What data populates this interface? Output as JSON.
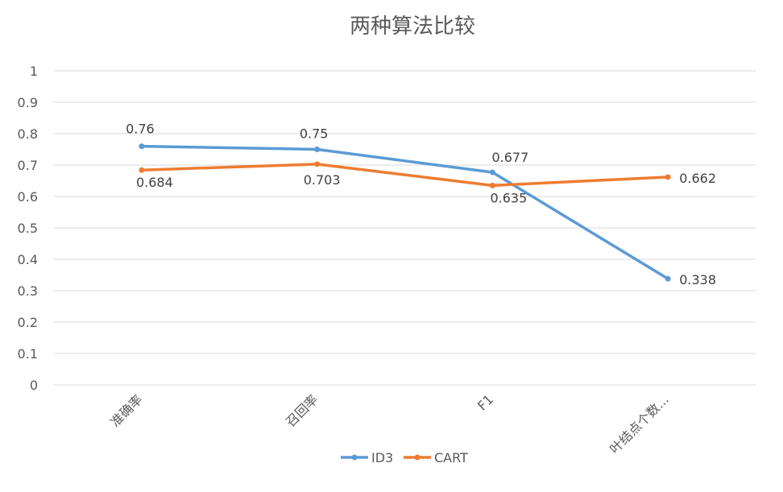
{
  "chart_data": {
    "type": "line",
    "title": "两种算法比较",
    "categories": [
      "准确率",
      "召回率",
      "F1",
      "叶结点个数..."
    ],
    "series": [
      {
        "name": "ID3",
        "values": [
          0.76,
          0.75,
          0.677,
          0.338
        ],
        "labels": [
          "0.76",
          "0.75",
          "0.677",
          "0.338"
        ],
        "color": "#5b9bd5"
      },
      {
        "name": "CART",
        "values": [
          0.684,
          0.703,
          0.635,
          0.662
        ],
        "labels": [
          "0.684",
          "0.703",
          "0.635",
          "0.662"
        ],
        "color": "#ed7d31"
      }
    ],
    "yticks": [
      "0",
      "0.1",
      "0.2",
      "0.3",
      "0.4",
      "0.5",
      "0.6",
      "0.7",
      "0.8",
      "0.9",
      "1"
    ],
    "ylim": [
      0,
      1
    ],
    "grid": true,
    "legend": "bottom"
  }
}
